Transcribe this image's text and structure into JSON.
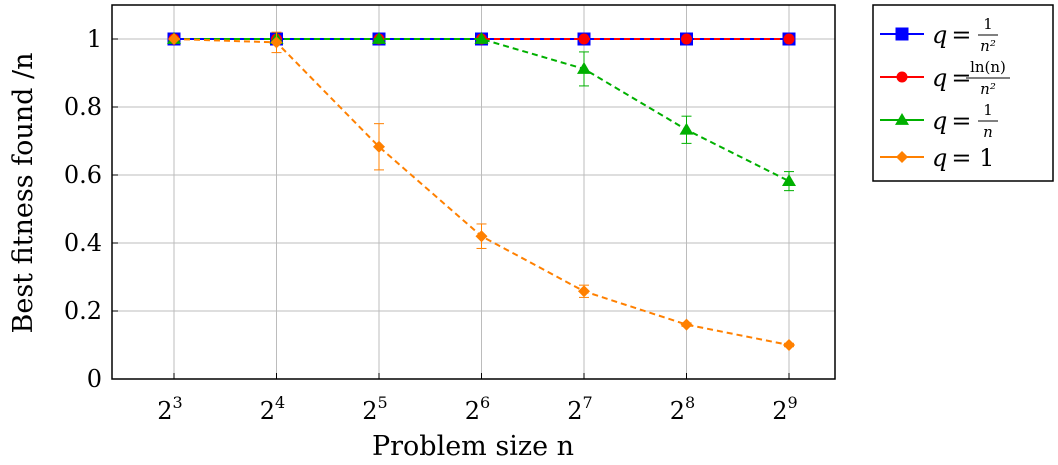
{
  "chart_data": {
    "type": "line",
    "xlabel": "Problem size n",
    "ylabel": "Best fitness found /n",
    "categories": [
      "2^3",
      "2^4",
      "2^5",
      "2^6",
      "2^7",
      "2^8",
      "2^9"
    ],
    "x_ticks": [
      {
        "base": "2",
        "exp": "3"
      },
      {
        "base": "2",
        "exp": "4"
      },
      {
        "base": "2",
        "exp": "5"
      },
      {
        "base": "2",
        "exp": "6"
      },
      {
        "base": "2",
        "exp": "7"
      },
      {
        "base": "2",
        "exp": "8"
      },
      {
        "base": "2",
        "exp": "9"
      }
    ],
    "y_ticks": [
      "0",
      "0.2",
      "0.4",
      "0.6",
      "0.8",
      "1"
    ],
    "ylim": [
      0,
      1.1
    ],
    "grid": true,
    "legend_position": "outside-right-top",
    "series": [
      {
        "legend": {
          "lhs": "q",
          "num": "1",
          "den": "n²"
        },
        "color": "#0000ff",
        "marker": "square",
        "values": [
          1,
          1,
          1,
          1,
          1,
          1,
          1
        ],
        "errors": [
          0,
          0,
          0,
          0,
          0,
          0,
          0
        ]
      },
      {
        "legend": {
          "lhs": "q",
          "num": "ln(n)",
          "den": "n²"
        },
        "color": "#ff0000",
        "marker": "circle",
        "values": [
          1,
          1,
          1,
          1,
          1,
          1,
          1
        ],
        "errors": [
          0,
          0,
          0,
          0,
          0,
          0,
          0
        ]
      },
      {
        "legend": {
          "lhs": "q",
          "num": "1",
          "den": "n"
        },
        "color": "#00b000",
        "marker": "triangle",
        "values": [
          1,
          1,
          1,
          1,
          0.912,
          0.733,
          0.582
        ],
        "errors": [
          0,
          0,
          0,
          0,
          0.05,
          0.04,
          0.028
        ]
      },
      {
        "legend": {
          "lhs": "q",
          "value": "1"
        },
        "color": "#ff8000",
        "marker": "diamond",
        "values": [
          1,
          0.99,
          0.683,
          0.42,
          0.258,
          0.16,
          0.1
        ],
        "errors": [
          0,
          0.03,
          0.068,
          0.036,
          0.018,
          0.005,
          0.005
        ]
      }
    ]
  }
}
